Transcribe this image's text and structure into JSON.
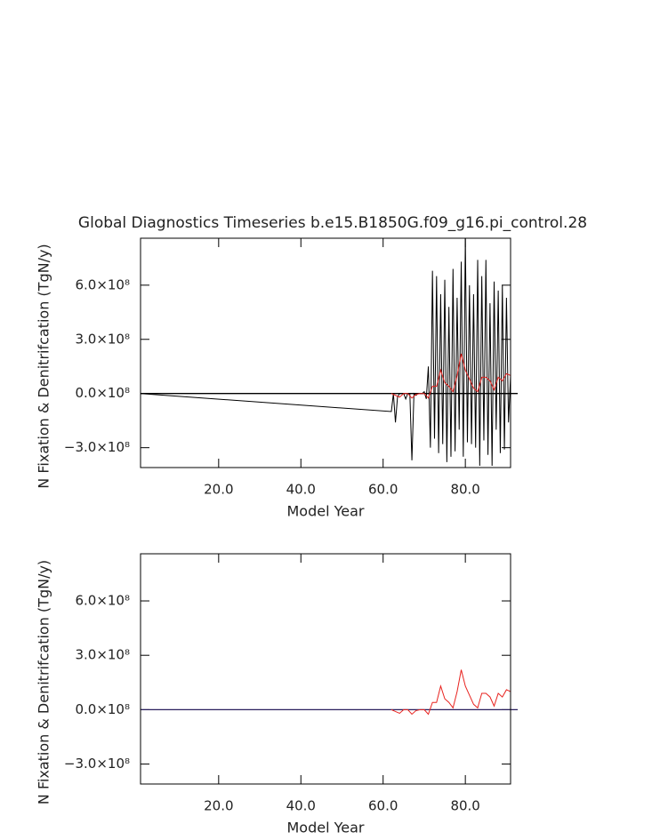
{
  "chart_data": [
    {
      "type": "line",
      "title": "Global Diagnostics Timeseries b.e15.B1850G.f09_g16.pi_control.28",
      "xlabel": "Model Year",
      "ylabel": "N Fixation & Denitrifcation (TgN/y)",
      "xlim": [
        1,
        91
      ],
      "xticks": [
        {
          "value": 20,
          "label": "20.0"
        },
        {
          "value": 40,
          "label": "40.0"
        },
        {
          "value": 60,
          "label": "60.0"
        },
        {
          "value": 80,
          "label": "80.0"
        }
      ],
      "ylim": [
        -410000000.0,
        860000000.0
      ],
      "yticks": [
        {
          "value": -300000000.0,
          "label": "−3.0×10⁸"
        },
        {
          "value": 0,
          "label": "0.0×10⁸"
        },
        {
          "value": 300000000.0,
          "label": "3.0×10⁸"
        },
        {
          "value": 600000000.0,
          "label": "6.0×10⁸"
        }
      ],
      "zero_line": "#000000",
      "series": [
        {
          "color": "#000000",
          "x": [
            1,
            62,
            62.5,
            63,
            63.5,
            64,
            64.5,
            65,
            65.5,
            66,
            66.5,
            67,
            67.5,
            68,
            68.5,
            69,
            69.5,
            70,
            70.5,
            71,
            71.5,
            72,
            72.5,
            73,
            73.5,
            74,
            74.5,
            75,
            75.5,
            76,
            76.5,
            77,
            77.5,
            78,
            78.5,
            79,
            79.5,
            80,
            80.5,
            81,
            81.5,
            82,
            82.5,
            83,
            83.5,
            84,
            84.5,
            85,
            85.5,
            86,
            86.5,
            87,
            87.5,
            88,
            88.5,
            89,
            89.5,
            90,
            90.5,
            91
          ],
          "values": [
            0,
            -100000000.0,
            0,
            -160000000.0,
            -20000000.0,
            0,
            0,
            0,
            -30000000.0,
            0,
            0,
            -370000000.0,
            0,
            -10000000.0,
            0,
            0,
            0,
            10000000.0,
            -30000000.0,
            150000000.0,
            -300000000.0,
            680000000.0,
            -250000000.0,
            650000000.0,
            -330000000.0,
            550000000.0,
            -280000000.0,
            630000000.0,
            -380000000.0,
            480000000.0,
            -350000000.0,
            690000000.0,
            -320000000.0,
            530000000.0,
            -200000000.0,
            730000000.0,
            -350000000.0,
            860000000.0,
            -270000000.0,
            600000000.0,
            -280000000.0,
            550000000.0,
            -300000000.0,
            740000000.0,
            -400000000.0,
            650000000.0,
            -260000000.0,
            740000000.0,
            -340000000.0,
            500000000.0,
            -400000000.0,
            620000000.0,
            -200000000.0,
            570000000.0,
            -330000000.0,
            600000000.0,
            -310000000.0,
            530000000.0,
            -160000000.0,
            100000000.0
          ]
        },
        {
          "color": "#e8231f",
          "x": [
            62,
            63,
            64,
            65,
            66,
            67,
            68,
            69,
            70,
            71,
            72,
            73,
            74,
            75,
            76,
            77,
            78,
            79,
            80,
            81,
            82,
            83,
            84,
            85,
            86,
            87,
            88,
            89,
            90,
            91
          ],
          "values": [
            0,
            -10000000.0,
            -20000000.0,
            0,
            0,
            -25000000.0,
            -5000000.0,
            0,
            0,
            -25000000.0,
            40000000.0,
            40000000.0,
            130000000.0,
            60000000.0,
            40000000.0,
            10000000.0,
            100000000.0,
            220000000.0,
            130000000.0,
            80000000.0,
            30000000.0,
            10000000.0,
            90000000.0,
            90000000.0,
            70000000.0,
            20000000.0,
            90000000.0,
            70000000.0,
            110000000.0,
            100000000.0
          ]
        }
      ]
    },
    {
      "type": "line",
      "xlabel": "Model Year",
      "ylabel": "N Fixation & Denitrifcation (TgN/y)",
      "xlim": [
        1,
        91
      ],
      "xticks": [
        {
          "value": 20,
          "label": "20.0"
        },
        {
          "value": 40,
          "label": "40.0"
        },
        {
          "value": 60,
          "label": "60.0"
        },
        {
          "value": 80,
          "label": "80.0"
        }
      ],
      "ylim": [
        -410000000.0,
        860000000.0
      ],
      "yticks": [
        {
          "value": -300000000.0,
          "label": "−3.0×10⁸"
        },
        {
          "value": 0,
          "label": "0.0×10⁸"
        },
        {
          "value": 300000000.0,
          "label": "3.0×10⁸"
        },
        {
          "value": 600000000.0,
          "label": "6.0×10⁸"
        }
      ],
      "zero_line": "#2a1f5e",
      "series": [
        {
          "color": "#e8231f",
          "x": [
            62,
            63,
            64,
            65,
            66,
            67,
            68,
            69,
            70,
            71,
            72,
            73,
            74,
            75,
            76,
            77,
            78,
            79,
            80,
            81,
            82,
            83,
            84,
            85,
            86,
            87,
            88,
            89,
            90,
            91
          ],
          "values": [
            0,
            -10000000.0,
            -20000000.0,
            0,
            0,
            -25000000.0,
            -5000000.0,
            0,
            0,
            -25000000.0,
            40000000.0,
            40000000.0,
            130000000.0,
            60000000.0,
            40000000.0,
            10000000.0,
            100000000.0,
            220000000.0,
            130000000.0,
            80000000.0,
            30000000.0,
            10000000.0,
            90000000.0,
            90000000.0,
            70000000.0,
            20000000.0,
            90000000.0,
            70000000.0,
            110000000.0,
            100000000.0
          ]
        }
      ]
    }
  ]
}
